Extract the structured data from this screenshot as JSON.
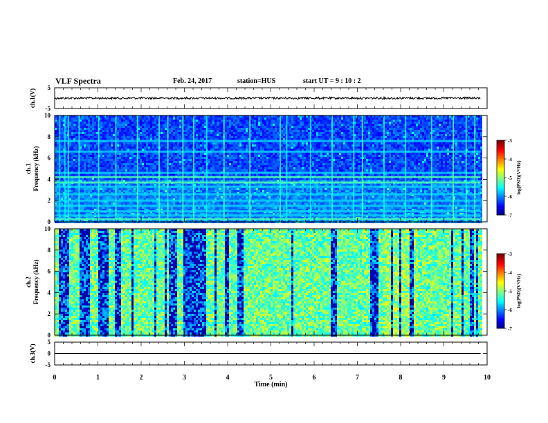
{
  "header": {
    "title": "VLF Spectra",
    "date": "Feb. 24, 2017",
    "station": "station=HUS",
    "start": "start  UT =   9 : 10 : 2"
  },
  "colors": {
    "spectrogram_background": "#000030",
    "trace": "#000000"
  },
  "chart_data": [
    {
      "type": "line",
      "panel": "ch1-waveform",
      "ylabel": "ch.1(V)",
      "ylim": [
        -5,
        5
      ],
      "yticks": [
        "5",
        "-5"
      ],
      "xlim": [
        0,
        10
      ],
      "x": [
        0,
        9.85
      ],
      "series": [
        {
          "values": [
            0,
            0
          ]
        }
      ]
    },
    {
      "type": "heatmap",
      "panel": "ch1-spectrogram",
      "ylabel": "ch.1\nFrequency (kHz)",
      "ylim": [
        0,
        10
      ],
      "yticks": [
        "0",
        "2",
        "4",
        "6",
        "8",
        "10"
      ],
      "xlim": [
        0,
        10
      ],
      "data_extent_min": 9.85,
      "colorbar": {
        "label": "log(PSD)(V²/Hz)",
        "range": [
          -7,
          -3
        ],
        "ticks": [
          "-3",
          "-4",
          "-5",
          "-6",
          "-7"
        ]
      },
      "bands_khz": [
        0.25,
        0.6,
        1.0,
        1.5,
        2.0,
        2.6,
        3.3,
        3.7,
        4.2,
        4.6,
        6.6,
        7.6
      ],
      "bursts_min": [
        0.1,
        0.22,
        0.3,
        0.55,
        1.0,
        1.4,
        1.9,
        2.4,
        2.6,
        2.95,
        3.2,
        3.5,
        3.9,
        4.5,
        5.2,
        5.35,
        5.9,
        6.4,
        6.9,
        7.1,
        7.6,
        8.1,
        8.7,
        9.2,
        9.5,
        9.7
      ]
    },
    {
      "type": "heatmap",
      "panel": "ch2-spectrogram",
      "ylabel": "ch.2\nFrequency (kHz)",
      "ylim": [
        0,
        10
      ],
      "yticks": [
        "0",
        "2",
        "4",
        "6",
        "8",
        "10"
      ],
      "xlim": [
        0,
        10
      ],
      "data_extent_min": 9.85,
      "colorbar": {
        "label": "log(PSD)(V²/Hz)",
        "range": [
          -7,
          -3
        ],
        "ticks": [
          "-3",
          "-4",
          "-5",
          "-6",
          "-7"
        ]
      },
      "quiet_intervals_min": [
        [
          0.05,
          0.3
        ],
        [
          0.55,
          0.8
        ],
        [
          1.0,
          1.2
        ],
        [
          1.35,
          1.5
        ],
        [
          2.6,
          2.8
        ],
        [
          2.95,
          3.5
        ],
        [
          4.2,
          4.35
        ],
        [
          6.35,
          6.5
        ],
        [
          7.25,
          7.45
        ]
      ]
    },
    {
      "type": "line",
      "panel": "ch3-waveform",
      "ylabel": "ch.3(V)",
      "ylim": [
        -5,
        5
      ],
      "yticks": [
        "5",
        "0",
        "-5"
      ],
      "xlim": [
        0,
        10
      ],
      "xlabel": "Time (min)",
      "xticks": [
        "0",
        "1",
        "2",
        "3",
        "4",
        "5",
        "6",
        "7",
        "8",
        "9",
        "10"
      ],
      "x": [
        0,
        9.85
      ],
      "series": [
        {
          "values": [
            0,
            0
          ]
        }
      ]
    }
  ]
}
